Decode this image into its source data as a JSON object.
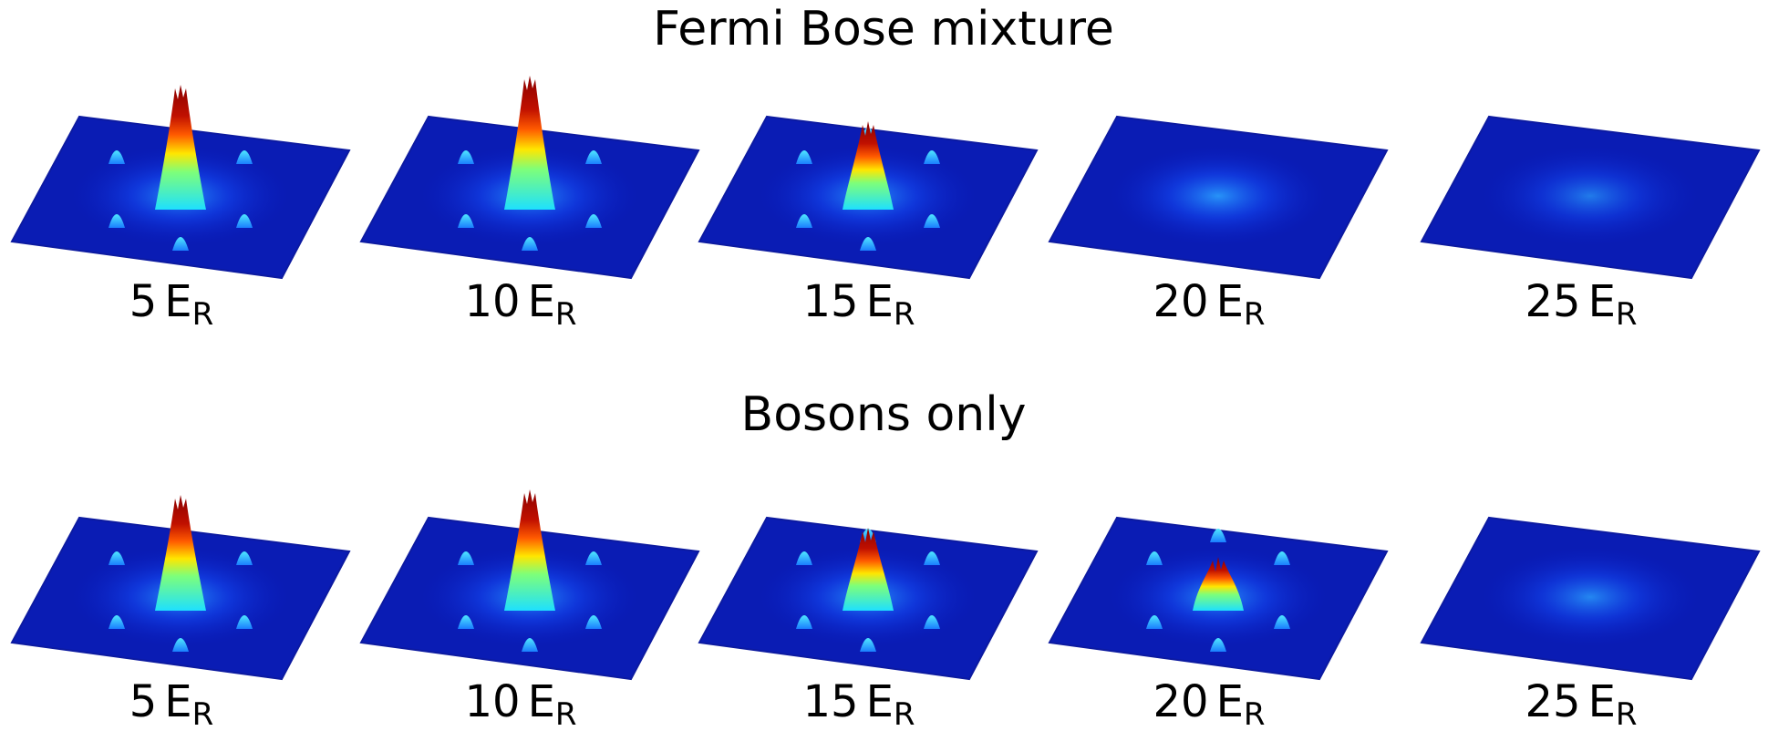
{
  "rows": [
    {
      "title": "Fermi Bose mixture",
      "panels": [
        {
          "number": "5",
          "unit": "E",
          "subscript": "R"
        },
        {
          "number": "10",
          "unit": "E",
          "subscript": "R"
        },
        {
          "number": "15",
          "unit": "E",
          "subscript": "R"
        },
        {
          "number": "20",
          "unit": "E",
          "subscript": "R"
        },
        {
          "number": "25",
          "unit": "E",
          "subscript": "R"
        }
      ]
    },
    {
      "title": "Bosons only",
      "panels": [
        {
          "number": "5",
          "unit": "E",
          "subscript": "R"
        },
        {
          "number": "10",
          "unit": "E",
          "subscript": "R"
        },
        {
          "number": "15",
          "unit": "E",
          "subscript": "R"
        },
        {
          "number": "20",
          "unit": "E",
          "subscript": "R"
        },
        {
          "number": "25",
          "unit": "E",
          "subscript": "R"
        }
      ]
    }
  ]
}
